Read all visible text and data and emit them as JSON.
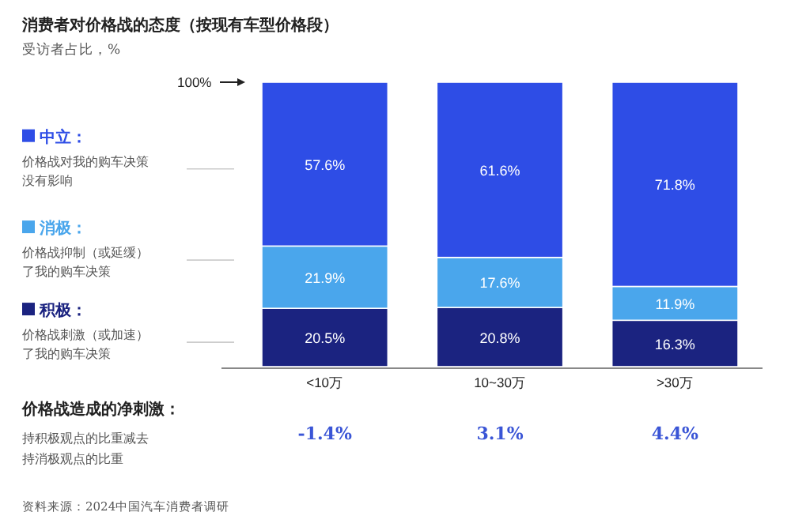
{
  "chart_data": {
    "type": "bar",
    "stacked": true,
    "title": "消费者对价格战的态度（按现有车型价格段）",
    "subtitle": "受访者占比，%",
    "categories": [
      "<10万",
      "10~30万",
      ">30万"
    ],
    "ylim": [
      0,
      100
    ],
    "yticks": [
      {
        "value": 100,
        "label": "100%"
      }
    ],
    "legend": "left",
    "series": [
      {
        "name": "积极：",
        "color": "#1b2380",
        "values": [
          20.5,
          20.8,
          16.3
        ],
        "value_labels": [
          "20.5%",
          "20.8%",
          "16.3%"
        ]
      },
      {
        "name": "消极：",
        "color": "#4aa6ec",
        "values": [
          21.9,
          17.6,
          11.9
        ],
        "value_labels": [
          "21.9%",
          "17.6%",
          "11.9%"
        ]
      },
      {
        "name": "中立：",
        "color": "#2e4de6",
        "values": [
          57.6,
          61.6,
          71.8
        ],
        "value_labels": [
          "57.6%",
          "61.6%",
          "71.8%"
        ]
      }
    ],
    "annotations": [
      "价格战刺激（或加速）了我的购车决策",
      "价格战抑制（或延缓）了我的购车决策",
      "价格战对我的购车决策没有影响",
      "价格战造成的净刺激：",
      "持积极观点的比重减去持消极观点的比重",
      "-1.4%",
      "3.1%",
      "4.4%",
      "资料来源：2024中国汽车消费者调研"
    ]
  }
}
